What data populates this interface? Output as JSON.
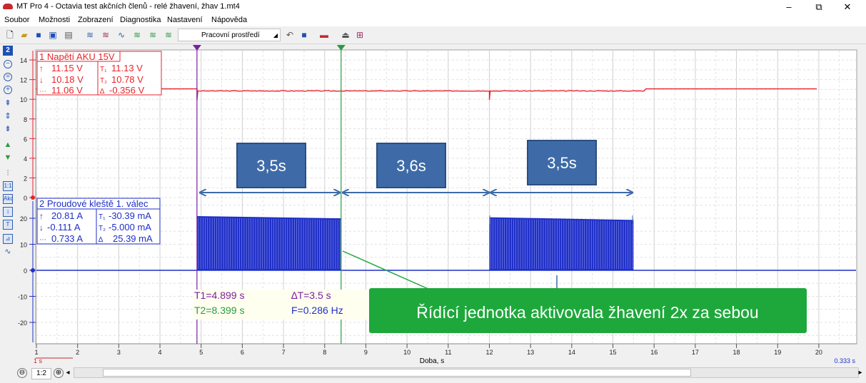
{
  "window": {
    "title": "MT Pro 4 - Octavia test akčních členů - relé žhavení, žhav 1.mt4",
    "minimize": "–",
    "restore": "⧉",
    "close": "✕"
  },
  "menu": [
    "Soubor",
    "Možnosti",
    "Zobrazení",
    "Diagnostika",
    "Nastavení",
    "Nápověda"
  ],
  "toolbar": {
    "workspace_label": "Pracovní prostředí"
  },
  "left_toolbar": {
    "channel_number": "2"
  },
  "channel1": {
    "name": "1 Napětí AKU 15V",
    "max": "11.15 V",
    "min": "10.18 V",
    "avg": "11.06 V",
    "t1": "11.13 V",
    "t2": "10.78 V",
    "delta": "-0.356 V",
    "y_ticks": [
      "14",
      "12",
      "10",
      "8",
      "6",
      "4",
      "2",
      "0"
    ],
    "color": "#e8242c"
  },
  "channel2": {
    "name": "2 Proudové kleště 1. válec",
    "max": "20.81 A",
    "min": "-0.111 A",
    "avg": "0.733 A",
    "t1": "-30.39 mA",
    "t2": "-5.000 mA",
    "delta": "25.39 mA",
    "y_ticks": [
      "20",
      "10",
      "0",
      "-10",
      "-20"
    ],
    "color": "#1f2fc8"
  },
  "cursors": {
    "t1": "T1=4.899 s",
    "t2": "T2=8.399 s",
    "dt": "∆T=3.5 s",
    "freq": "F=0.286 Hz",
    "t1_value": 4.899,
    "t2_value": 8.399
  },
  "x_axis": {
    "label": "Doba, s",
    "ticks": [
      "1",
      "2",
      "3",
      "4",
      "5",
      "6",
      "7",
      "8",
      "9",
      "10",
      "11",
      "12",
      "13",
      "14",
      "15",
      "16",
      "17",
      "18",
      "19",
      "20"
    ],
    "scale_left": "1 s",
    "scale_right": "0.333 s"
  },
  "annotations": {
    "interval1": "3,5s",
    "interval2": "3,6s",
    "interval3": "3,5s",
    "callout": "Řídící jednotka aktivovala žhavení 2x za sebou",
    "box_color": "#3e6ba8",
    "callout_color": "#1ea83c"
  },
  "signal": {
    "voltage_idle": 11.06,
    "voltage_loaded": 10.85,
    "current_peak": 20.81,
    "bursts": [
      {
        "start": 4.9,
        "end": 8.4
      },
      {
        "start": 12.0,
        "end": 15.5
      }
    ],
    "dips": [
      4.9,
      12.0
    ]
  },
  "bottom": {
    "zoom": "1:2",
    "zoom_out": "⊖",
    "zoom_in": "⊕",
    "scroll_left": "◂",
    "scroll_right": "▸"
  }
}
